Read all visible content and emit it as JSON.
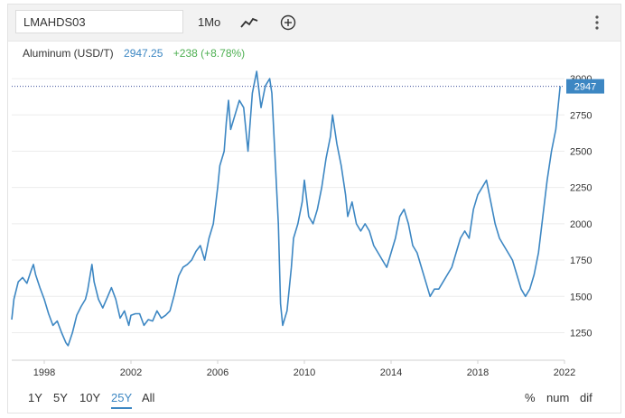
{
  "toolbar": {
    "symbol": "LMAHDS03",
    "interval": "1Mo",
    "chart_type_icon": "line-chart-icon",
    "add_icon": "plus-circle-icon",
    "menu_icon": "more-vertical-icon"
  },
  "legend": {
    "name": "Aluminum (USD/T)",
    "price": "2947.25",
    "change": "+238 (+8.78%)"
  },
  "ranges": [
    "1Y",
    "5Y",
    "10Y",
    "25Y",
    "All"
  ],
  "active_range": "25Y",
  "modes": [
    "%",
    "num",
    "dif"
  ],
  "colors": {
    "line": "#3d87c3",
    "positive": "#4caf50",
    "last_price_bg": "#3d87c3"
  },
  "chart_data": {
    "type": "line",
    "title": "",
    "series": [
      {
        "name": "Aluminum (USD/T)",
        "x": [
          1996.5,
          1996.6,
          1996.8,
          1997.0,
          1997.2,
          1997.4,
          1997.5,
          1997.6,
          1997.8,
          1998.0,
          1998.2,
          1998.4,
          1998.6,
          1998.8,
          1999.0,
          1999.1,
          1999.3,
          1999.5,
          1999.7,
          1999.9,
          2000.0,
          2000.2,
          2000.3,
          2000.5,
          2000.7,
          2000.9,
          2001.1,
          2001.3,
          2001.5,
          2001.7,
          2001.9,
          2002.0,
          2002.2,
          2002.4,
          2002.6,
          2002.8,
          2003.0,
          2003.2,
          2003.4,
          2003.6,
          2003.8,
          2004.0,
          2004.2,
          2004.4,
          2004.6,
          2004.8,
          2005.0,
          2005.2,
          2005.4,
          2005.6,
          2005.8,
          2006.0,
          2006.1,
          2006.3,
          2006.4,
          2006.5,
          2006.6,
          2006.8,
          2007.0,
          2007.2,
          2007.4,
          2007.6,
          2007.8,
          2008.0,
          2008.2,
          2008.4,
          2008.5,
          2008.6,
          2008.8,
          2008.9,
          2009.0,
          2009.2,
          2009.4,
          2009.5,
          2009.7,
          2009.9,
          2010.0,
          2010.2,
          2010.4,
          2010.6,
          2010.8,
          2011.0,
          2011.2,
          2011.3,
          2011.5,
          2011.7,
          2011.9,
          2012.0,
          2012.2,
          2012.4,
          2012.6,
          2012.8,
          2013.0,
          2013.2,
          2013.4,
          2013.6,
          2013.8,
          2014.0,
          2014.2,
          2014.4,
          2014.6,
          2014.8,
          2015.0,
          2015.2,
          2015.4,
          2015.6,
          2015.8,
          2016.0,
          2016.2,
          2016.4,
          2016.6,
          2016.8,
          2017.0,
          2017.2,
          2017.4,
          2017.6,
          2017.8,
          2018.0,
          2018.2,
          2018.4,
          2018.6,
          2018.8,
          2019.0,
          2019.2,
          2019.4,
          2019.6,
          2019.8,
          2020.0,
          2020.2,
          2020.4,
          2020.6,
          2020.8,
          2021.0,
          2021.2,
          2021.4,
          2021.6,
          2021.8
        ],
        "values": [
          1340,
          1480,
          1600,
          1630,
          1590,
          1680,
          1720,
          1650,
          1560,
          1480,
          1380,
          1300,
          1330,
          1250,
          1180,
          1160,
          1250,
          1370,
          1430,
          1480,
          1540,
          1720,
          1600,
          1480,
          1420,
          1490,
          1560,
          1480,
          1350,
          1400,
          1300,
          1370,
          1380,
          1380,
          1300,
          1340,
          1330,
          1400,
          1350,
          1370,
          1400,
          1510,
          1640,
          1700,
          1720,
          1750,
          1810,
          1850,
          1750,
          1900,
          2000,
          2250,
          2400,
          2500,
          2700,
          2850,
          2650,
          2750,
          2850,
          2800,
          2500,
          2900,
          3050,
          2800,
          2950,
          3000,
          2900,
          2600,
          2000,
          1450,
          1300,
          1400,
          1700,
          1900,
          2000,
          2150,
          2300,
          2050,
          2000,
          2100,
          2250,
          2450,
          2600,
          2750,
          2550,
          2400,
          2200,
          2050,
          2150,
          2000,
          1950,
          2000,
          1950,
          1850,
          1800,
          1750,
          1700,
          1800,
          1900,
          2050,
          2100,
          2000,
          1850,
          1800,
          1700,
          1600,
          1500,
          1550,
          1550,
          1600,
          1650,
          1700,
          1800,
          1900,
          1950,
          1900,
          2100,
          2200,
          2250,
          2300,
          2150,
          2000,
          1900,
          1850,
          1800,
          1750,
          1650,
          1550,
          1500,
          1550,
          1650,
          1800,
          2050,
          2300,
          2500,
          2650,
          2947
        ]
      }
    ],
    "x_ticks": [
      "1998",
      "2002",
      "2006",
      "2010",
      "2014",
      "2018",
      "2022"
    ],
    "x_tick_values": [
      1998,
      2002,
      2006,
      2010,
      2014,
      2018,
      2022
    ],
    "y_ticks": [
      "1250",
      "1500",
      "1750",
      "2000",
      "2250",
      "2500",
      "2750",
      "3000"
    ],
    "y_tick_values": [
      1250,
      1500,
      1750,
      2000,
      2250,
      2500,
      2750,
      3000
    ],
    "xlim": [
      1996.5,
      2022
    ],
    "ylim": [
      1060,
      3100
    ],
    "grid": true,
    "last_value_label": "2947"
  }
}
